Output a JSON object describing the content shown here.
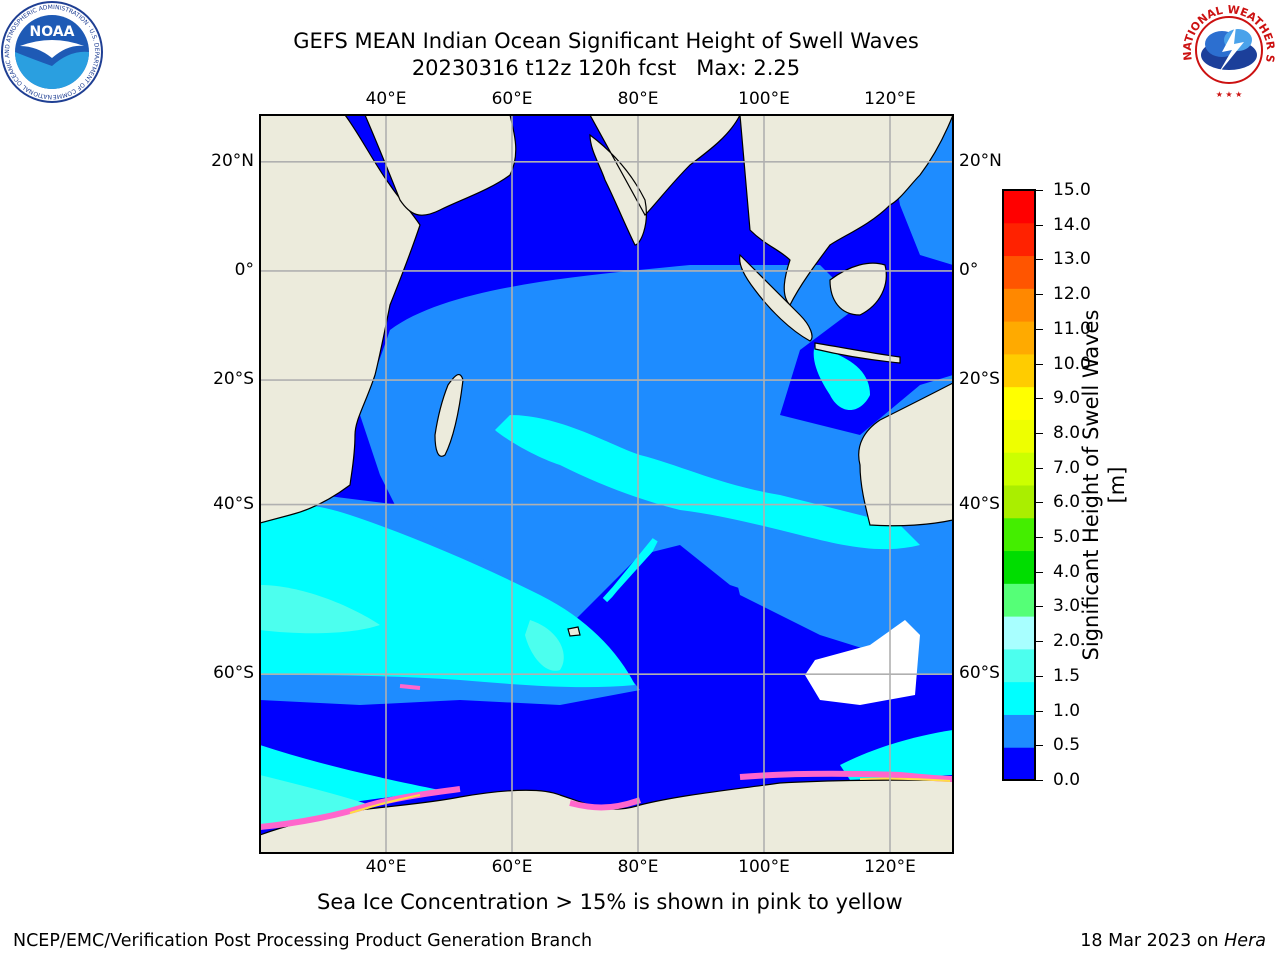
{
  "title": {
    "line1": "GEFS MEAN Indian Ocean Significant Height of Swell Waves",
    "line2": "20230316 t12z 120h fcst   Max: 2.25"
  },
  "map": {
    "region": "Indian Ocean",
    "lon_ticks": [
      "40°E",
      "60°E",
      "80°E",
      "100°E",
      "120°E"
    ],
    "lat_ticks": [
      "20°N",
      "0°",
      "20°S",
      "40°S",
      "60°S"
    ],
    "lon_range": [
      20,
      130
    ],
    "lat_range": [
      -73,
      28
    ],
    "grid": true,
    "colors": {
      "land": "#ecebdc",
      "sea_ice": "#ff66cc",
      "unmasked_white": "#ffffff"
    }
  },
  "colorbar": {
    "label": "Significant Height of Swell Waves [m]",
    "ticks": [
      "15.0",
      "14.0",
      "13.0",
      "12.0",
      "11.0",
      "10.0",
      "9.0",
      "8.0",
      "7.0",
      "6.0",
      "5.0",
      "4.0",
      "3.0",
      "2.0",
      "1.5",
      "1.0",
      "0.5",
      "0.0"
    ],
    "levels": [
      {
        "from": 0.0,
        "to": 0.5,
        "color": "#0000ff"
      },
      {
        "from": 0.5,
        "to": 1.0,
        "color": "#1e8cff"
      },
      {
        "from": 1.0,
        "to": 1.5,
        "color": "#00ffff"
      },
      {
        "from": 1.5,
        "to": 2.0,
        "color": "#4cffee"
      },
      {
        "from": 2.0,
        "to": 3.0,
        "color": "#a8ffff"
      },
      {
        "from": 3.0,
        "to": 4.0,
        "color": "#55ff77"
      },
      {
        "from": 4.0,
        "to": 5.0,
        "color": "#00dd00"
      },
      {
        "from": 5.0,
        "to": 6.0,
        "color": "#44ee00"
      },
      {
        "from": 6.0,
        "to": 7.0,
        "color": "#aaee00"
      },
      {
        "from": 7.0,
        "to": 8.0,
        "color": "#ccff00"
      },
      {
        "from": 8.0,
        "to": 9.0,
        "color": "#eeff00"
      },
      {
        "from": 9.0,
        "to": 10.0,
        "color": "#ffff00"
      },
      {
        "from": 10.0,
        "to": 11.0,
        "color": "#ffcc00"
      },
      {
        "from": 11.0,
        "to": 12.0,
        "color": "#ffaa00"
      },
      {
        "from": 12.0,
        "to": 13.0,
        "color": "#ff8800"
      },
      {
        "from": 13.0,
        "to": 14.0,
        "color": "#ff5500"
      },
      {
        "from": 14.0,
        "to": 15.0,
        "color": "#ff2200"
      },
      {
        "from": 15.0,
        "to": 16.0,
        "color": "#ff0000"
      }
    ]
  },
  "footer": {
    "sea_ice_note": "Sea Ice Concentration > 15% is shown in pink to yellow",
    "credit": "NCEP/EMC/Verification Post Processing Product Generation Branch",
    "date": "18 Mar 2023 on ",
    "machine": "Hera"
  },
  "logos": {
    "left": {
      "icon": "noaa-logo",
      "text": "NOAA"
    },
    "right": {
      "icon": "nws-logo",
      "text": "NATIONAL WEATHER SERVICE"
    }
  }
}
